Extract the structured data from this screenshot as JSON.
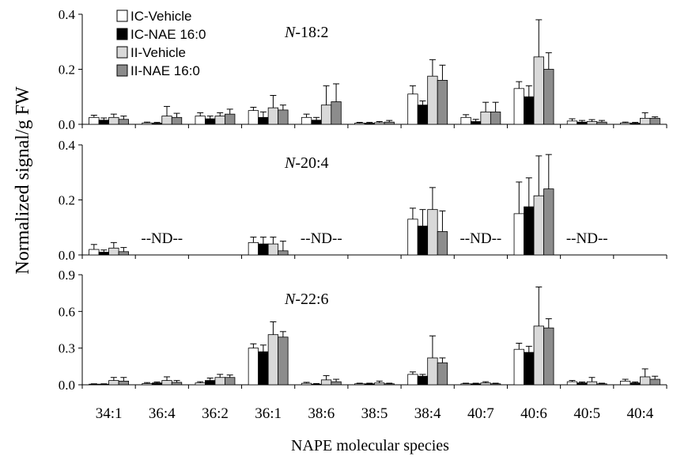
{
  "chart_data": {
    "type": "bar",
    "categories": [
      "34:1",
      "36:4",
      "36:2",
      "36:1",
      "38:6",
      "38:5",
      "38:4",
      "40:7",
      "40:6",
      "40:5",
      "40:4"
    ],
    "xlabel": "NAPE molecular species",
    "ylabel": "Normalized signal/g FW",
    "legend": {
      "placement": "top-left",
      "entries": [
        {
          "name": "IC-Vehicle",
          "color": "#ffffff"
        },
        {
          "name": "IC-NAE 16:0",
          "color": "#000000"
        },
        {
          "name": "II-Vehicle",
          "color": "#d9d9d9"
        },
        {
          "name": "II-NAE 16:0",
          "color": "#8c8c8c"
        }
      ]
    },
    "panels": [
      {
        "title_italic": "N",
        "title_rest": "-18:2",
        "ylim": [
          0,
          0.4
        ],
        "yticks": [
          "0.0",
          "0.2",
          "0.4"
        ],
        "ytick_values": [
          0,
          0.2,
          0.4
        ],
        "series": [
          {
            "name": "IC-Vehicle",
            "values": [
              0.025,
              0.005,
              0.03,
              0.05,
              0.025,
              0.004,
              0.11,
              0.025,
              0.13,
              0.012,
              0.005
            ],
            "errors": [
              0.008,
              0.003,
              0.012,
              0.012,
              0.012,
              0.003,
              0.03,
              0.01,
              0.025,
              0.008,
              0.003
            ]
          },
          {
            "name": "IC-NAE 16:0",
            "values": [
              0.015,
              0.004,
              0.02,
              0.025,
              0.015,
              0.004,
              0.07,
              0.01,
              0.1,
              0.008,
              0.004
            ],
            "errors": [
              0.008,
              0.003,
              0.01,
              0.02,
              0.01,
              0.003,
              0.015,
              0.008,
              0.04,
              0.006,
              0.003
            ]
          },
          {
            "name": "II-Vehicle",
            "values": [
              0.025,
              0.03,
              0.03,
              0.06,
              0.07,
              0.006,
              0.175,
              0.045,
              0.245,
              0.01,
              0.022
            ],
            "errors": [
              0.012,
              0.035,
              0.012,
              0.045,
              0.07,
              0.004,
              0.06,
              0.035,
              0.135,
              0.007,
              0.02
            ]
          },
          {
            "name": "II-NAE 16:0",
            "values": [
              0.018,
              0.025,
              0.037,
              0.052,
              0.082,
              0.008,
              0.16,
              0.045,
              0.2,
              0.008,
              0.022
            ],
            "errors": [
              0.012,
              0.015,
              0.018,
              0.018,
              0.065,
              0.006,
              0.055,
              0.035,
              0.06,
              0.006,
              0.005
            ]
          }
        ],
        "annotations": []
      },
      {
        "title_italic": "N",
        "title_rest": "-20:4",
        "ylim": [
          0,
          0.4
        ],
        "yticks": [
          "0.0",
          "0.2",
          "0.4"
        ],
        "ytick_values": [
          0,
          0.2,
          0.4
        ],
        "series": [
          {
            "name": "IC-Vehicle",
            "values": [
              0.02,
              0,
              0,
              0.045,
              0,
              0,
              0.13,
              0,
              0.15,
              0,
              0
            ],
            "errors": [
              0.018,
              0,
              0,
              0.02,
              0,
              0,
              0.04,
              0,
              0.115,
              0,
              0
            ]
          },
          {
            "name": "IC-NAE 16:0",
            "values": [
              0.01,
              0,
              0,
              0.04,
              0,
              0,
              0.105,
              0,
              0.175,
              0,
              0
            ],
            "errors": [
              0.008,
              0,
              0,
              0.025,
              0,
              0,
              0.06,
              0,
              0.105,
              0,
              0
            ]
          },
          {
            "name": "II-Vehicle",
            "values": [
              0.025,
              0,
              0,
              0.04,
              0,
              0,
              0.165,
              0,
              0.215,
              0,
              0
            ],
            "errors": [
              0.02,
              0,
              0,
              0.025,
              0,
              0,
              0.08,
              0,
              0.145,
              0,
              0
            ]
          },
          {
            "name": "II-NAE 16:0",
            "values": [
              0.012,
              0,
              0,
              0.015,
              0,
              0,
              0.085,
              0,
              0.24,
              0,
              0
            ],
            "errors": [
              0.015,
              0,
              0,
              0.035,
              0,
              0,
              0.075,
              0,
              0.125,
              0,
              0
            ]
          }
        ],
        "annotations": [
          {
            "text": "--ND--",
            "category": "36:4"
          },
          {
            "text": "--ND--",
            "category": "38:6"
          },
          {
            "text": "--ND--",
            "category": "40:7"
          },
          {
            "text": "--ND--",
            "category": "40:5"
          }
        ]
      },
      {
        "title_italic": "N",
        "title_rest": "-22:6",
        "ylim": [
          0,
          0.9
        ],
        "yticks": [
          "0.0",
          "0.3",
          "0.6",
          "0.9"
        ],
        "ytick_values": [
          0,
          0.3,
          0.6,
          0.9
        ],
        "series": [
          {
            "name": "IC-Vehicle",
            "values": [
              0.005,
              0.01,
              0.015,
              0.3,
              0.012,
              0.008,
              0.085,
              0.008,
              0.29,
              0.025,
              0.03
            ],
            "errors": [
              0.003,
              0.008,
              0.01,
              0.035,
              0.008,
              0.005,
              0.02,
              0.005,
              0.05,
              0.01,
              0.015
            ]
          },
          {
            "name": "IC-NAE 16:0",
            "values": [
              0.005,
              0.015,
              0.035,
              0.27,
              0.005,
              0.008,
              0.07,
              0.008,
              0.265,
              0.015,
              0.015
            ],
            "errors": [
              0.003,
              0.008,
              0.02,
              0.055,
              0.005,
              0.005,
              0.015,
              0.005,
              0.05,
              0.008,
              0.008
            ]
          },
          {
            "name": "II-Vehicle",
            "values": [
              0.035,
              0.035,
              0.06,
              0.41,
              0.04,
              0.015,
              0.22,
              0.015,
              0.48,
              0.025,
              0.065
            ],
            "errors": [
              0.025,
              0.03,
              0.025,
              0.105,
              0.035,
              0.015,
              0.18,
              0.01,
              0.32,
              0.035,
              0.065
            ]
          },
          {
            "name": "II-NAE 16:0",
            "values": [
              0.03,
              0.02,
              0.06,
              0.39,
              0.025,
              0.008,
              0.18,
              0.008,
              0.465,
              0.008,
              0.045
            ],
            "errors": [
              0.03,
              0.015,
              0.02,
              0.045,
              0.02,
              0.005,
              0.04,
              0.005,
              0.075,
              0.005,
              0.025
            ]
          }
        ],
        "annotations": []
      }
    ]
  }
}
